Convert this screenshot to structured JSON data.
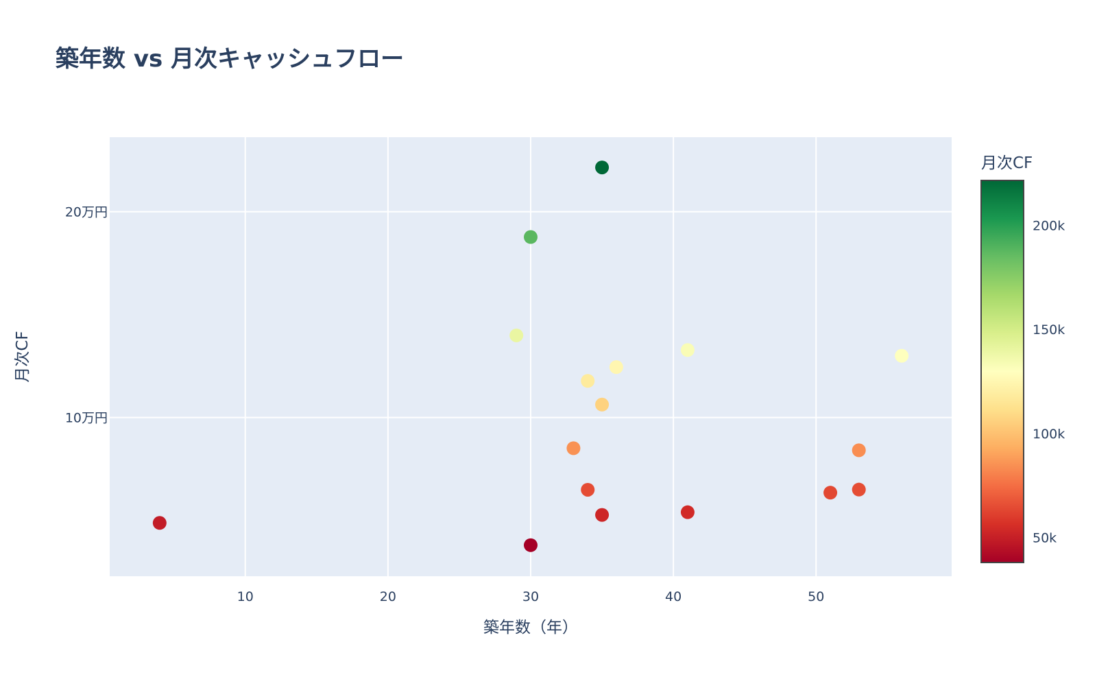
{
  "chart": {
    "title": "築年数 vs 月次キャッシュフロー"
  },
  "chart_data": {
    "type": "scatter",
    "title": "築年数 vs 月次キャッシュフロー",
    "xlabel": "築年数（年）",
    "ylabel": "月次CF",
    "xlim": [
      0.5,
      59.5
    ],
    "ylim": [
      22900,
      236200
    ],
    "x_ticks": [
      10,
      20,
      30,
      40,
      50
    ],
    "x_tick_labels": [
      "10",
      "20",
      "30",
      "40",
      "50"
    ],
    "y_ticks": [
      100000,
      200000
    ],
    "y_tick_labels": [
      "10万円",
      "20万円"
    ],
    "grid": true,
    "plot_bgcolor": "#e5ecf6",
    "colorbar": {
      "title": "月次CF",
      "colorscale": "RdYlGn",
      "cmin": 38000,
      "cmax": 221500,
      "ticks": [
        50000,
        100000,
        150000,
        200000
      ],
      "tick_labels": [
        "50k",
        "100k",
        "150k",
        "200k"
      ]
    },
    "points": [
      {
        "x": 35,
        "y": 221500
      },
      {
        "x": 30,
        "y": 187700
      },
      {
        "x": 29,
        "y": 139900
      },
      {
        "x": 41,
        "y": 132800
      },
      {
        "x": 56,
        "y": 130000
      },
      {
        "x": 36,
        "y": 124500
      },
      {
        "x": 34,
        "y": 117800
      },
      {
        "x": 35,
        "y": 106300
      },
      {
        "x": 33,
        "y": 85100
      },
      {
        "x": 53,
        "y": 84100
      },
      {
        "x": 34,
        "y": 64900
      },
      {
        "x": 53,
        "y": 65000
      },
      {
        "x": 51,
        "y": 63500
      },
      {
        "x": 41,
        "y": 54000
      },
      {
        "x": 35,
        "y": 52700
      },
      {
        "x": 4,
        "y": 48800
      },
      {
        "x": 30,
        "y": 38000
      }
    ]
  }
}
